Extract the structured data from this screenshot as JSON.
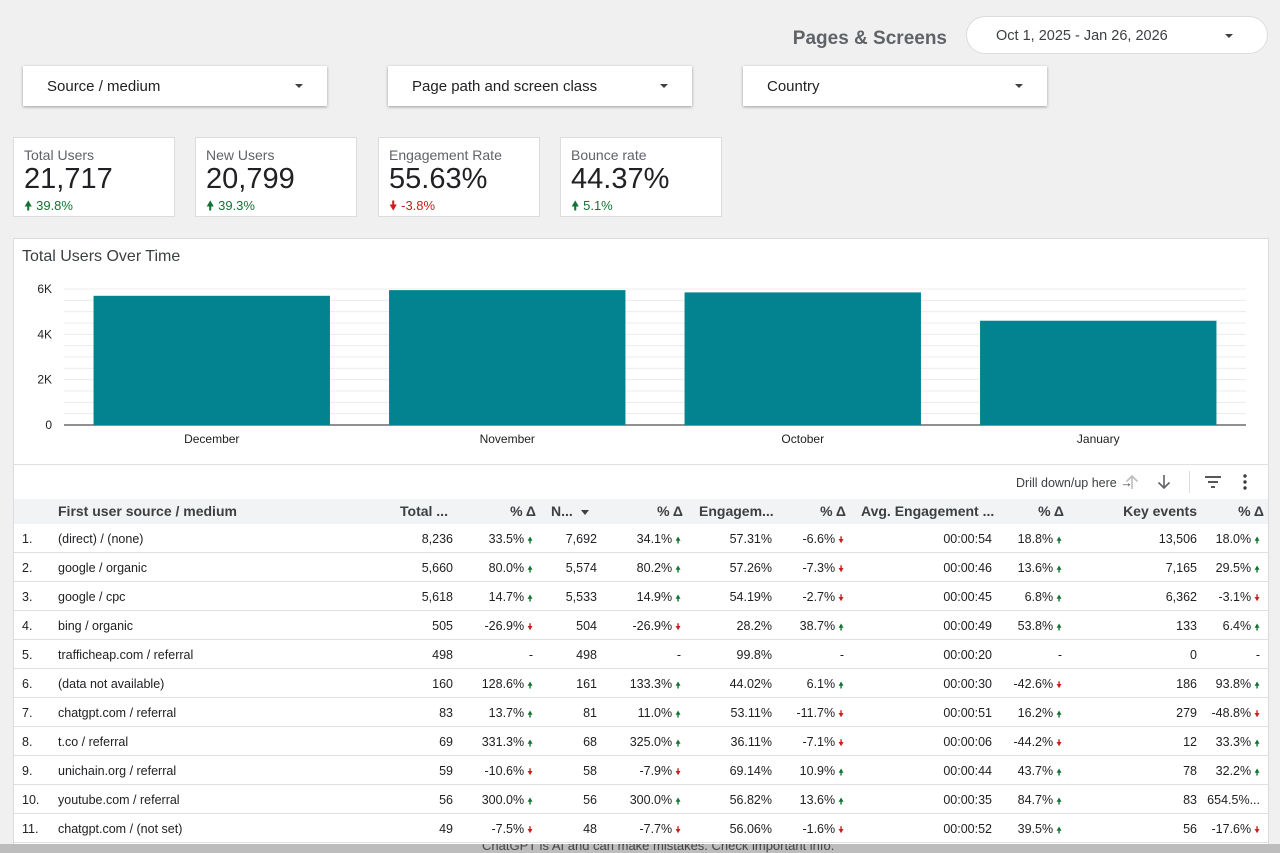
{
  "header": {
    "title": "Pages & Screens",
    "date_range": "Oct 1, 2025 - Jan 26, 2026"
  },
  "filters": [
    {
      "label": "Source / medium"
    },
    {
      "label": "Page path and screen class"
    },
    {
      "label": "Country"
    }
  ],
  "scorecards": [
    {
      "label": "Total Users",
      "value": "21,717",
      "delta": "39.8%",
      "direction": "up"
    },
    {
      "label": "New Users",
      "value": "20,799",
      "delta": "39.3%",
      "direction": "up"
    },
    {
      "label": "Engagement Rate",
      "value": "55.63%",
      "delta": "-3.8%",
      "direction": "down"
    },
    {
      "label": "Bounce rate",
      "value": "44.37%",
      "delta": "5.1%",
      "direction": "up"
    }
  ],
  "chart_title": "Total Users Over Time",
  "chart_data": {
    "type": "bar",
    "title": "Total Users Over Time",
    "categories": [
      "December",
      "November",
      "October",
      "January"
    ],
    "values": [
      5700,
      5950,
      5850,
      4600
    ],
    "y_ticks": [
      "0",
      "2K",
      "4K",
      "6K"
    ],
    "ylim": [
      0,
      6000
    ],
    "bar_color": "#038290",
    "grid": true
  },
  "table": {
    "toolbar": {
      "drill_text": "Drill down/up here →"
    },
    "columns": [
      "First user source / medium",
      "Total ...",
      "% Δ",
      "N...",
      "% Δ",
      "Engagem...",
      "% Δ",
      "Avg. Engagement ...",
      "% Δ",
      "Key events",
      "% Δ"
    ],
    "rows": [
      {
        "num": "1.",
        "source": "(direct) / (none)",
        "total": "8,236",
        "total_d": "33.5%",
        "total_dir": "up",
        "new": "7,692",
        "new_d": "34.1%",
        "new_dir": "up",
        "eng": "57.31%",
        "eng_d": "-6.6%",
        "eng_dir": "down",
        "avg": "00:00:54",
        "avg_d": "18.8%",
        "avg_dir": "up",
        "key": "13,506",
        "key_d": "18.0%",
        "key_dir": "up"
      },
      {
        "num": "2.",
        "source": "google / organic",
        "total": "5,660",
        "total_d": "80.0%",
        "total_dir": "up",
        "new": "5,574",
        "new_d": "80.2%",
        "new_dir": "up",
        "eng": "57.26%",
        "eng_d": "-7.3%",
        "eng_dir": "down",
        "avg": "00:00:46",
        "avg_d": "13.6%",
        "avg_dir": "up",
        "key": "7,165",
        "key_d": "29.5%",
        "key_dir": "up"
      },
      {
        "num": "3.",
        "source": "google / cpc",
        "total": "5,618",
        "total_d": "14.7%",
        "total_dir": "up",
        "new": "5,533",
        "new_d": "14.9%",
        "new_dir": "up",
        "eng": "54.19%",
        "eng_d": "-2.7%",
        "eng_dir": "down",
        "avg": "00:00:45",
        "avg_d": "6.8%",
        "avg_dir": "up",
        "key": "6,362",
        "key_d": "-3.1%",
        "key_dir": "down"
      },
      {
        "num": "4.",
        "source": "bing / organic",
        "total": "505",
        "total_d": "-26.9%",
        "total_dir": "down",
        "new": "504",
        "new_d": "-26.9%",
        "new_dir": "down",
        "eng": "28.2%",
        "eng_d": "38.7%",
        "eng_dir": "up",
        "avg": "00:00:49",
        "avg_d": "53.8%",
        "avg_dir": "up",
        "key": "133",
        "key_d": "6.4%",
        "key_dir": "up"
      },
      {
        "num": "5.",
        "source": "trafficheap.com / referral",
        "total": "498",
        "total_d": "-",
        "total_dir": "none",
        "new": "498",
        "new_d": "-",
        "new_dir": "none",
        "eng": "99.8%",
        "eng_d": "-",
        "eng_dir": "none",
        "avg": "00:00:20",
        "avg_d": "-",
        "avg_dir": "none",
        "key": "0",
        "key_d": "-",
        "key_dir": "none"
      },
      {
        "num": "6.",
        "source": "(data not available)",
        "total": "160",
        "total_d": "128.6%",
        "total_dir": "up",
        "new": "161",
        "new_d": "133.3%",
        "new_dir": "up",
        "eng": "44.02%",
        "eng_d": "6.1%",
        "eng_dir": "up",
        "avg": "00:00:30",
        "avg_d": "-42.6%",
        "avg_dir": "down",
        "key": "186",
        "key_d": "93.8%",
        "key_dir": "up"
      },
      {
        "num": "7.",
        "source": "chatgpt.com / referral",
        "total": "83",
        "total_d": "13.7%",
        "total_dir": "up",
        "new": "81",
        "new_d": "11.0%",
        "new_dir": "up",
        "eng": "53.11%",
        "eng_d": "-11.7%",
        "eng_dir": "down",
        "avg": "00:00:51",
        "avg_d": "16.2%",
        "avg_dir": "up",
        "key": "279",
        "key_d": "-48.8%",
        "key_dir": "down"
      },
      {
        "num": "8.",
        "source": "t.co / referral",
        "total": "69",
        "total_d": "331.3%",
        "total_dir": "up",
        "new": "68",
        "new_d": "325.0%",
        "new_dir": "up",
        "eng": "36.11%",
        "eng_d": "-7.1%",
        "eng_dir": "down",
        "avg": "00:00:06",
        "avg_d": "-44.2%",
        "avg_dir": "down",
        "key": "12",
        "key_d": "33.3%",
        "key_dir": "up"
      },
      {
        "num": "9.",
        "source": "unichain.org / referral",
        "total": "59",
        "total_d": "-10.6%",
        "total_dir": "down",
        "new": "58",
        "new_d": "-7.9%",
        "new_dir": "down",
        "eng": "69.14%",
        "eng_d": "10.9%",
        "eng_dir": "up",
        "avg": "00:00:44",
        "avg_d": "43.7%",
        "avg_dir": "up",
        "key": "78",
        "key_d": "32.2%",
        "key_dir": "up"
      },
      {
        "num": "10.",
        "source": "youtube.com / referral",
        "total": "56",
        "total_d": "300.0%",
        "total_dir": "up",
        "new": "56",
        "new_d": "300.0%",
        "new_dir": "up",
        "eng": "56.82%",
        "eng_d": "13.6%",
        "eng_dir": "up",
        "avg": "00:00:35",
        "avg_d": "84.7%",
        "avg_dir": "up",
        "key": "83",
        "key_d": "654.5%...",
        "key_dir": "none"
      },
      {
        "num": "11.",
        "source": "chatgpt.com / (not set)",
        "total": "49",
        "total_d": "-7.5%",
        "total_dir": "down",
        "new": "48",
        "new_d": "-7.7%",
        "new_dir": "down",
        "eng": "56.06%",
        "eng_d": "-1.6%",
        "eng_dir": "down",
        "avg": "00:00:52",
        "avg_d": "39.5%",
        "avg_dir": "up",
        "key": "56",
        "key_d": "-17.6%",
        "key_dir": "down"
      }
    ]
  },
  "footer_hint": "ChatGPT is AI and can make mistakes. Check important info.",
  "colors": {
    "accent_bar": "#038290",
    "up": "#137333",
    "down": "#c5221f"
  },
  "icons": {
    "arrow_up": "arrow-up-icon",
    "arrow_down": "arrow-down-icon",
    "filter": "filter-icon",
    "more": "more-vert-icon",
    "sort": "sort-desc-icon"
  }
}
